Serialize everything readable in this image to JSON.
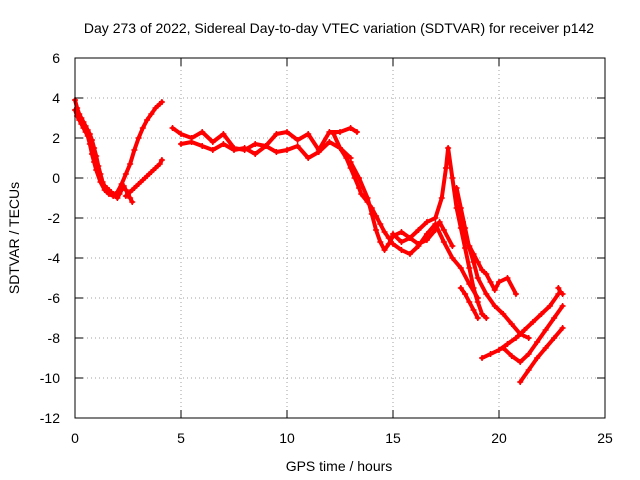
{
  "chart_data": {
    "type": "scatter",
    "title": "Day 273 of 2022, Sidereal Day-to-day VTEC variation (SDTVAR) for receiver p142",
    "xlabel": "GPS time / hours",
    "ylabel": "SDTVAR / TECUs",
    "xlim": [
      0,
      25
    ],
    "ylim": [
      -12,
      6
    ],
    "xticks": [
      0,
      5,
      10,
      15,
      20,
      25
    ],
    "yticks": [
      -12,
      -10,
      -8,
      -6,
      -4,
      -2,
      0,
      2,
      4,
      6
    ],
    "grid": true,
    "marker": "plus",
    "color": "#ff0000",
    "series": [
      {
        "x": [
          0.0,
          0.1,
          0.2,
          0.3,
          0.4,
          0.5,
          0.6,
          0.7,
          0.8,
          0.9,
          1.0,
          1.1,
          1.2,
          1.3,
          1.4,
          1.5,
          1.6,
          1.7,
          1.8,
          1.9,
          2.0,
          2.1,
          2.2,
          2.3,
          2.4,
          2.5,
          2.6,
          2.7
        ],
        "y": [
          3.9,
          3.5,
          3.2,
          3.0,
          2.8,
          2.6,
          2.4,
          2.2,
          1.9,
          1.5,
          1.1,
          0.6,
          0.2,
          -0.2,
          -0.4,
          -0.5,
          -0.6,
          -0.7,
          -0.8,
          -0.9,
          -1.0,
          -0.8,
          -0.6,
          -0.4,
          -0.6,
          -0.8,
          -1.0,
          -1.2
        ]
      },
      {
        "x": [
          0.0,
          0.1,
          0.2,
          0.3,
          0.4,
          0.5,
          0.6,
          0.7,
          0.8,
          0.9,
          1.0,
          1.2,
          1.4,
          1.6,
          1.8,
          2.0,
          2.2,
          2.4,
          2.6,
          2.8,
          3.0,
          3.2,
          3.4,
          3.6,
          3.8,
          4.0,
          4.1
        ],
        "y": [
          3.4,
          3.1,
          2.9,
          2.7,
          2.5,
          2.3,
          2.1,
          1.7,
          1.2,
          0.8,
          0.4,
          -0.2,
          -0.6,
          -0.8,
          -0.9,
          -0.7,
          -0.3,
          0.2,
          0.7,
          1.4,
          2.0,
          2.5,
          2.9,
          3.2,
          3.5,
          3.7,
          3.8
        ]
      },
      {
        "x": [
          2.4,
          2.6,
          2.8,
          3.0,
          3.2,
          3.4,
          3.6,
          3.8,
          4.0,
          4.1
        ],
        "y": [
          -0.9,
          -0.7,
          -0.5,
          -0.3,
          -0.1,
          0.1,
          0.3,
          0.5,
          0.7,
          0.9
        ]
      },
      {
        "x": [
          4.6,
          5.0,
          5.5,
          6.0,
          6.5,
          7.0,
          7.5,
          8.0,
          8.5,
          9.0,
          9.5,
          10.0,
          10.5,
          11.0,
          11.5,
          12.0,
          12.5,
          13.0,
          13.3
        ],
        "y": [
          2.5,
          2.2,
          2.0,
          2.3,
          1.8,
          2.2,
          1.5,
          1.4,
          1.7,
          1.6,
          2.2,
          2.3,
          1.9,
          2.2,
          1.4,
          2.3,
          2.3,
          2.5,
          2.3
        ]
      },
      {
        "x": [
          5.0,
          5.5,
          6.0,
          6.5,
          7.0,
          7.5,
          8.0,
          8.5,
          9.0,
          9.5,
          10.0,
          10.5,
          11.0,
          11.5,
          12.0,
          12.5,
          13.0
        ],
        "y": [
          1.7,
          1.8,
          1.6,
          1.4,
          1.7,
          1.4,
          1.5,
          1.2,
          1.6,
          1.3,
          1.4,
          1.6,
          1.0,
          1.3,
          1.8,
          1.5,
          1.0
        ]
      },
      {
        "x": [
          12.2,
          12.5,
          12.8,
          13.0,
          13.2,
          13.4,
          13.5,
          13.8,
          14.0,
          14.2,
          14.4,
          14.6,
          14.8,
          15.0,
          15.4,
          15.8,
          16.2,
          16.6,
          17.0,
          17.4,
          17.8,
          18.2,
          18.6,
          19.0
        ],
        "y": [
          2.2,
          1.5,
          1.0,
          0.5,
          0.0,
          -0.5,
          -0.8,
          -1.2,
          -1.5,
          -1.9,
          -2.3,
          -2.7,
          -3.0,
          -3.3,
          -3.6,
          -3.8,
          -3.4,
          -2.8,
          -2.3,
          -3.2,
          -4.0,
          -4.5,
          -5.3,
          -6.0
        ]
      },
      {
        "x": [
          13.0,
          13.4,
          13.8,
          14.0,
          14.2,
          14.4,
          14.6,
          14.8,
          15.0,
          15.4,
          15.8,
          16.2,
          16.6,
          17.0,
          17.2,
          17.4,
          17.8
        ],
        "y": [
          0.8,
          0.0,
          -1.0,
          -1.8,
          -2.6,
          -3.2,
          -3.6,
          -3.3,
          -2.9,
          -2.7,
          -3.0,
          -3.3,
          -3.1,
          -2.6,
          -2.2,
          -2.6,
          -3.4
        ]
      },
      {
        "x": [
          15.0,
          15.4,
          15.8,
          16.2,
          16.6,
          17.0,
          17.3,
          17.5,
          17.6,
          17.8,
          18.0,
          18.2,
          18.4,
          18.6,
          18.8,
          19.0,
          19.2,
          19.4
        ],
        "y": [
          -2.8,
          -3.2,
          -3.0,
          -2.6,
          -2.2,
          -2.0,
          -1.0,
          0.5,
          1.5,
          0.0,
          -1.5,
          -2.5,
          -3.5,
          -4.5,
          -5.5,
          -6.2,
          -6.8,
          -7.0
        ]
      },
      {
        "x": [
          18.0,
          18.2,
          18.4,
          18.6,
          18.8,
          19.0,
          19.4,
          19.8,
          20.2,
          20.6,
          21.0,
          21.4
        ],
        "y": [
          -0.5,
          -1.5,
          -2.5,
          -3.5,
          -4.2,
          -5.0,
          -5.8,
          -6.4,
          -6.8,
          -7.3,
          -7.8,
          -8.0
        ]
      },
      {
        "x": [
          18.1,
          18.3,
          18.4,
          18.6,
          18.8,
          19.0,
          19.2,
          19.4,
          19.6,
          19.8,
          20.0,
          20.4,
          20.8
        ],
        "y": [
          -1.5,
          -2.2,
          -3.0,
          -3.4,
          -3.8,
          -4.2,
          -4.6,
          -4.8,
          -5.2,
          -5.6,
          -5.2,
          -5.0,
          -5.8
        ]
      },
      {
        "x": [
          18.2,
          18.4,
          18.6,
          18.8,
          19.0
        ],
        "y": [
          -5.5,
          -5.8,
          -6.2,
          -6.6,
          -7.0
        ]
      },
      {
        "x": [
          19.2,
          19.6,
          20.0,
          20.4,
          20.8,
          21.2,
          21.6,
          22.0,
          22.4,
          22.8
        ],
        "y": [
          -9.0,
          -8.8,
          -8.6,
          -8.3,
          -8.0,
          -7.6,
          -7.2,
          -6.8,
          -6.4,
          -5.8
        ]
      },
      {
        "x": [
          20.2,
          20.6,
          21.0,
          21.4,
          21.8,
          22.2,
          22.6,
          23.0
        ],
        "y": [
          -8.5,
          -8.9,
          -9.2,
          -8.8,
          -8.2,
          -7.6,
          -7.0,
          -6.4
        ]
      },
      {
        "x": [
          21.0,
          21.4,
          21.8,
          22.2,
          22.6,
          23.0
        ],
        "y": [
          -10.2,
          -9.6,
          -9.0,
          -8.5,
          -8.0,
          -7.5
        ]
      },
      {
        "x": [
          22.8,
          22.9,
          23.0
        ],
        "y": [
          -5.5,
          -5.7,
          -5.8
        ]
      }
    ]
  }
}
